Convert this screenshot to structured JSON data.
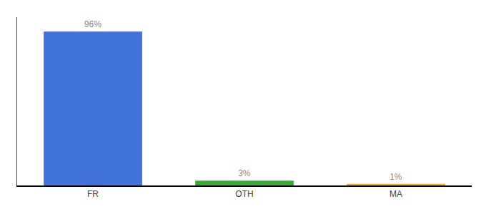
{
  "chart_data": {
    "type": "bar",
    "categories": [
      "FR",
      "OTH",
      "MA"
    ],
    "values": [
      96,
      3,
      1
    ],
    "value_labels": [
      "96%",
      "3%",
      "1%"
    ],
    "colors": [
      "#4472db",
      "#3aab3a",
      "#f0a830"
    ],
    "ylim": [
      0,
      105
    ],
    "data_labels": true,
    "tick_labels": "x",
    "grid": false
  }
}
